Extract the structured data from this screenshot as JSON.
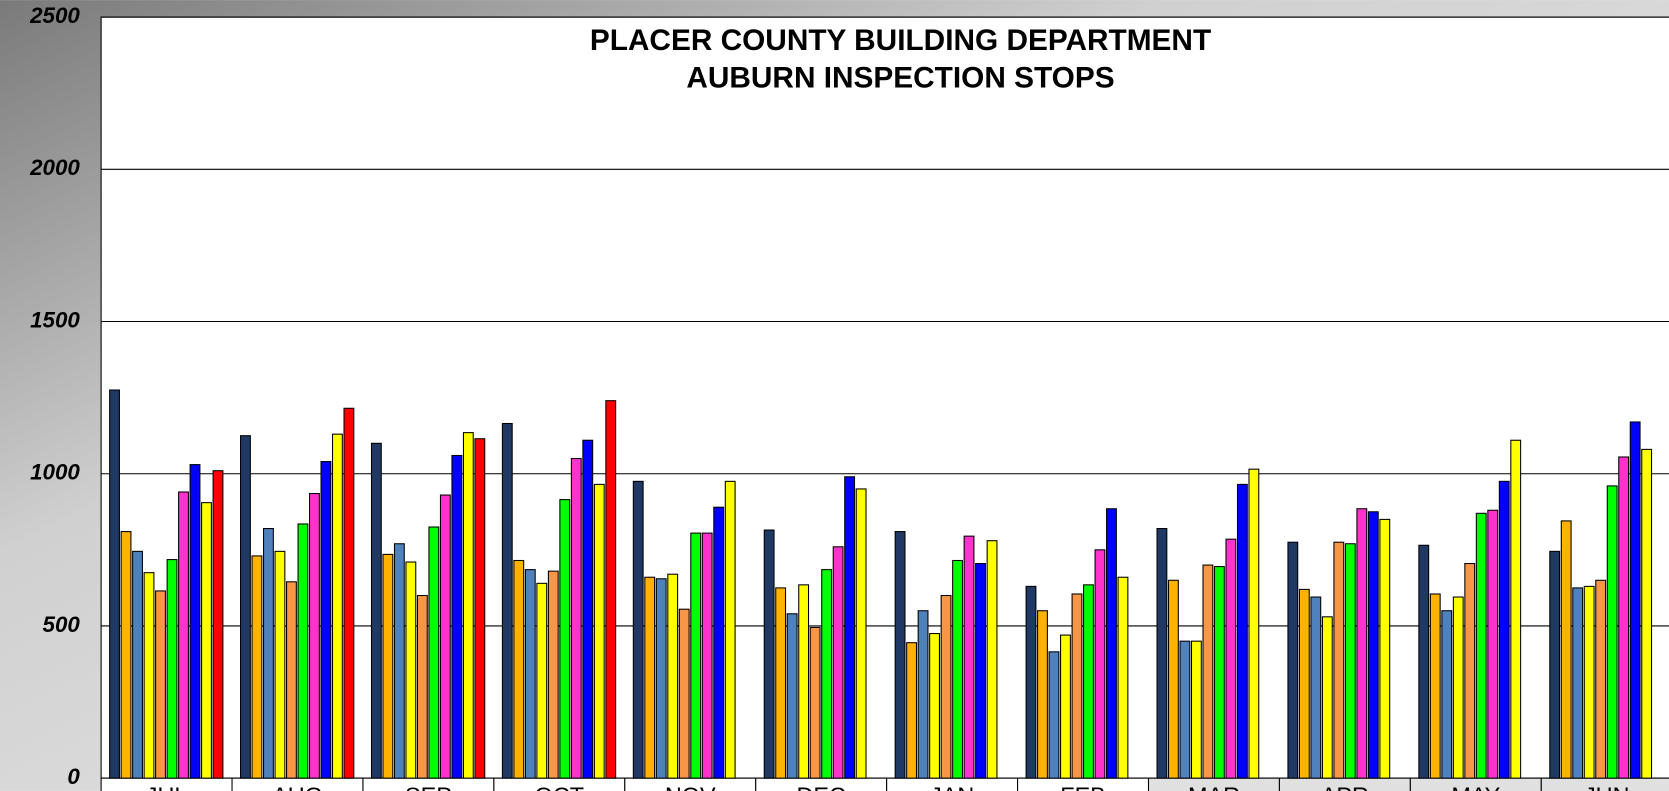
{
  "chart_data": {
    "type": "bar",
    "title": "PLACER COUNTY BUILDING DEPARTMENT",
    "subtitle": "AUBURN INSPECTION STOPS",
    "categories": [
      "JUL",
      "AUG",
      "SEP",
      "OCT",
      "NOV",
      "DEC",
      "JAN",
      "FEB",
      "MAR",
      "APR",
      "MAY",
      "JUN"
    ],
    "series": [
      {
        "color": "#1f3864",
        "values": [
          1275,
          1125,
          1100,
          1165,
          975,
          815,
          810,
          630,
          820,
          775,
          765,
          745
        ]
      },
      {
        "color": "#ffb300",
        "values": [
          810,
          730,
          735,
          715,
          660,
          625,
          445,
          550,
          650,
          620,
          605,
          845
        ]
      },
      {
        "color": "#4f81bd",
        "values": [
          745,
          820,
          770,
          685,
          655,
          540,
          550,
          415,
          450,
          595,
          550,
          625
        ]
      },
      {
        "color": "#ffff00",
        "values": [
          675,
          745,
          710,
          640,
          670,
          635,
          475,
          470,
          450,
          530,
          595,
          630
        ]
      },
      {
        "color": "#f79646",
        "values": [
          615,
          645,
          600,
          680,
          555,
          495,
          600,
          605,
          700,
          775,
          705,
          650
        ]
      },
      {
        "color": "#00ff00",
        "values": [
          718,
          835,
          825,
          915,
          805,
          685,
          715,
          635,
          695,
          770,
          870,
          960
        ]
      },
      {
        "color": "#ff33cc",
        "values": [
          940,
          935,
          930,
          1050,
          805,
          760,
          795,
          750,
          785,
          885,
          880,
          1055
        ]
      },
      {
        "color": "#0000ff",
        "values": [
          1030,
          1040,
          1060,
          1110,
          890,
          990,
          705,
          885,
          965,
          875,
          975,
          1170
        ]
      },
      {
        "color": "#ffff00",
        "values": [
          905,
          1130,
          1135,
          965,
          975,
          950,
          780,
          660,
          1015,
          850,
          1110,
          1080
        ]
      },
      {
        "color": "#ff0000",
        "values": [
          1010,
          1215,
          1115,
          1240,
          null,
          null,
          null,
          null,
          null,
          null,
          null,
          null
        ]
      }
    ],
    "ylim": [
      0,
      2500
    ],
    "yticks": [
      0,
      500,
      1000,
      1500,
      2000,
      2500
    ],
    "grid": true
  }
}
